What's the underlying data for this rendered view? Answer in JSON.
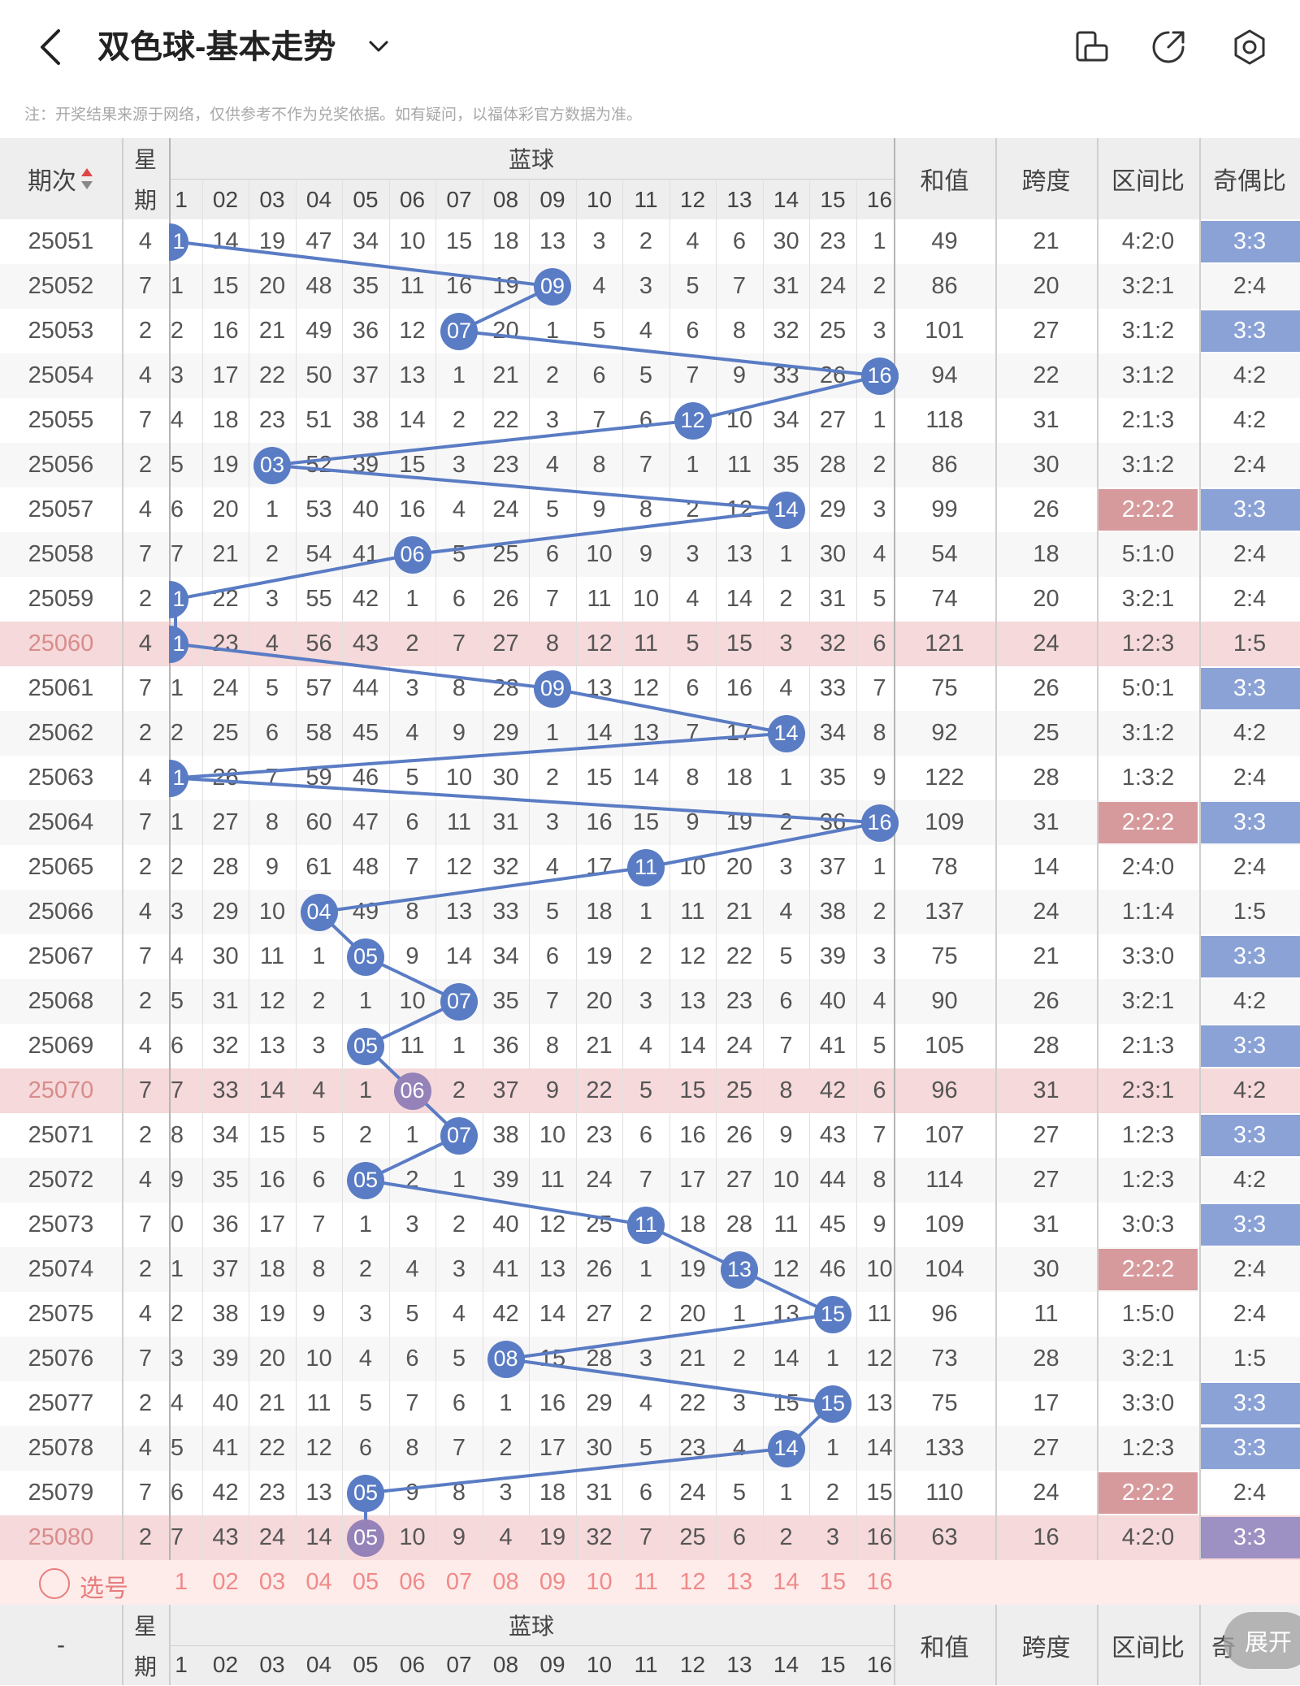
{
  "header": {
    "title": "双色球-基本走势",
    "icons": [
      "back-arrow-icon",
      "chevron-down-icon",
      "phone-rotate-icon",
      "share-icon",
      "settings-icon"
    ]
  },
  "note": "注：开奖结果来源于网络，仅供参考不作为兑奖依据。如有疑问，以福体彩官方数据为准。",
  "columns": {
    "period": "期次",
    "weekday": "星期",
    "blue_ball": "蓝球",
    "blue_numbers": [
      "01",
      "02",
      "03",
      "04",
      "05",
      "06",
      "07",
      "08",
      "09",
      "10",
      "11",
      "12",
      "13",
      "14",
      "15",
      "16"
    ],
    "sum": "和值",
    "span": "跨度",
    "zone_ratio": "区间比",
    "odd_even": "奇偶比"
  },
  "visible_first_col_digits": [
    "1",
    "02",
    "03",
    "04",
    "05",
    "06",
    "07",
    "08",
    "09",
    "10",
    "11",
    "12",
    "13",
    "14",
    "15",
    "16"
  ],
  "rows": [
    {
      "period": "25051",
      "week": "4",
      "blue": 1,
      "omit": [
        "1",
        "14",
        "19",
        "47",
        "34",
        "10",
        "15",
        "18",
        "13",
        "3",
        "2",
        "4",
        "6",
        "30",
        "23",
        "1"
      ],
      "sum": "49",
      "span": "21",
      "zone": "4:2:0",
      "oe": "3:3"
    },
    {
      "period": "25052",
      "week": "7",
      "blue": 9,
      "omit": [
        "1",
        "15",
        "20",
        "48",
        "35",
        "11",
        "16",
        "19",
        "09",
        "4",
        "3",
        "5",
        "7",
        "31",
        "24",
        "2"
      ],
      "sum": "86",
      "span": "20",
      "zone": "3:2:1",
      "oe": "2:4"
    },
    {
      "period": "25053",
      "week": "2",
      "blue": 7,
      "omit": [
        "2",
        "16",
        "21",
        "49",
        "36",
        "12",
        "07",
        "20",
        "1",
        "5",
        "4",
        "6",
        "8",
        "32",
        "25",
        "3"
      ],
      "sum": "101",
      "span": "27",
      "zone": "3:1:2",
      "oe": "3:3"
    },
    {
      "period": "25054",
      "week": "4",
      "blue": 16,
      "omit": [
        "3",
        "17",
        "22",
        "50",
        "37",
        "13",
        "1",
        "21",
        "2",
        "6",
        "5",
        "7",
        "9",
        "33",
        "26",
        "16"
      ],
      "sum": "94",
      "span": "22",
      "zone": "3:1:2",
      "oe": "4:2"
    },
    {
      "period": "25055",
      "week": "7",
      "blue": 12,
      "omit": [
        "4",
        "18",
        "23",
        "51",
        "38",
        "14",
        "2",
        "22",
        "3",
        "7",
        "6",
        "12",
        "10",
        "34",
        "27",
        "1"
      ],
      "sum": "118",
      "span": "31",
      "zone": "2:1:3",
      "oe": "4:2"
    },
    {
      "period": "25056",
      "week": "2",
      "blue": 3,
      "omit": [
        "5",
        "19",
        "03",
        "52",
        "39",
        "15",
        "3",
        "23",
        "4",
        "8",
        "7",
        "1",
        "11",
        "35",
        "28",
        "2"
      ],
      "sum": "86",
      "span": "30",
      "zone": "3:1:2",
      "oe": "2:4"
    },
    {
      "period": "25057",
      "week": "4",
      "blue": 14,
      "omit": [
        "6",
        "20",
        "1",
        "53",
        "40",
        "16",
        "4",
        "24",
        "5",
        "9",
        "8",
        "2",
        "12",
        "14",
        "29",
        "3"
      ],
      "sum": "99",
      "span": "26",
      "zone": "2:2:2",
      "oe": "3:3"
    },
    {
      "period": "25058",
      "week": "7",
      "blue": 6,
      "omit": [
        "7",
        "21",
        "2",
        "54",
        "41",
        "06",
        "5",
        "25",
        "6",
        "10",
        "9",
        "3",
        "13",
        "1",
        "30",
        "4"
      ],
      "sum": "54",
      "span": "18",
      "zone": "5:1:0",
      "oe": "2:4"
    },
    {
      "period": "25059",
      "week": "2",
      "blue": 1,
      "omit": [
        "1",
        "22",
        "3",
        "55",
        "42",
        "1",
        "6",
        "26",
        "7",
        "11",
        "10",
        "4",
        "14",
        "2",
        "31",
        "5"
      ],
      "sum": "74",
      "span": "20",
      "zone": "3:2:1",
      "oe": "2:4"
    },
    {
      "period": "25060",
      "week": "4",
      "blue": 1,
      "omit": [
        "1",
        "23",
        "4",
        "56",
        "43",
        "2",
        "7",
        "27",
        "8",
        "12",
        "11",
        "5",
        "15",
        "3",
        "32",
        "6"
      ],
      "sum": "121",
      "span": "24",
      "zone": "1:2:3",
      "oe": "1:5"
    },
    {
      "period": "25061",
      "week": "7",
      "blue": 9,
      "omit": [
        "1",
        "24",
        "5",
        "57",
        "44",
        "3",
        "8",
        "28",
        "09",
        "13",
        "12",
        "6",
        "16",
        "4",
        "33",
        "7"
      ],
      "sum": "75",
      "span": "26",
      "zone": "5:0:1",
      "oe": "3:3"
    },
    {
      "period": "25062",
      "week": "2",
      "blue": 14,
      "omit": [
        "2",
        "25",
        "6",
        "58",
        "45",
        "4",
        "9",
        "29",
        "1",
        "14",
        "13",
        "7",
        "17",
        "14",
        "34",
        "8"
      ],
      "sum": "92",
      "span": "25",
      "zone": "3:1:2",
      "oe": "4:2"
    },
    {
      "period": "25063",
      "week": "4",
      "blue": 1,
      "omit": [
        "1",
        "26",
        "7",
        "59",
        "46",
        "5",
        "10",
        "30",
        "2",
        "15",
        "14",
        "8",
        "18",
        "1",
        "35",
        "9"
      ],
      "sum": "122",
      "span": "28",
      "zone": "1:3:2",
      "oe": "2:4"
    },
    {
      "period": "25064",
      "week": "7",
      "blue": 16,
      "omit": [
        "1",
        "27",
        "8",
        "60",
        "47",
        "6",
        "11",
        "31",
        "3",
        "16",
        "15",
        "9",
        "19",
        "2",
        "36",
        "16"
      ],
      "sum": "109",
      "span": "31",
      "zone": "2:2:2",
      "oe": "3:3"
    },
    {
      "period": "25065",
      "week": "2",
      "blue": 11,
      "omit": [
        "2",
        "28",
        "9",
        "61",
        "48",
        "7",
        "12",
        "32",
        "4",
        "17",
        "11",
        "10",
        "20",
        "3",
        "37",
        "1"
      ],
      "sum": "78",
      "span": "14",
      "zone": "2:4:0",
      "oe": "2:4"
    },
    {
      "period": "25066",
      "week": "4",
      "blue": 4,
      "omit": [
        "3",
        "29",
        "10",
        "04",
        "49",
        "8",
        "13",
        "33",
        "5",
        "18",
        "1",
        "11",
        "21",
        "4",
        "38",
        "2"
      ],
      "sum": "137",
      "span": "24",
      "zone": "1:1:4",
      "oe": "1:5"
    },
    {
      "period": "25067",
      "week": "7",
      "blue": 5,
      "omit": [
        "4",
        "30",
        "11",
        "1",
        "05",
        "9",
        "14",
        "34",
        "6",
        "19",
        "2",
        "12",
        "22",
        "5",
        "39",
        "3"
      ],
      "sum": "75",
      "span": "21",
      "zone": "3:3:0",
      "oe": "3:3"
    },
    {
      "period": "25068",
      "week": "2",
      "blue": 7,
      "omit": [
        "5",
        "31",
        "12",
        "2",
        "1",
        "10",
        "07",
        "35",
        "7",
        "20",
        "3",
        "13",
        "23",
        "6",
        "40",
        "4"
      ],
      "sum": "90",
      "span": "26",
      "zone": "3:2:1",
      "oe": "4:2"
    },
    {
      "period": "25069",
      "week": "4",
      "blue": 5,
      "omit": [
        "6",
        "32",
        "13",
        "3",
        "05",
        "11",
        "1",
        "36",
        "8",
        "21",
        "4",
        "14",
        "24",
        "7",
        "41",
        "5"
      ],
      "sum": "105",
      "span": "28",
      "zone": "2:1:3",
      "oe": "3:3"
    },
    {
      "period": "25070",
      "week": "7",
      "blue": 6,
      "omit": [
        "7",
        "33",
        "14",
        "4",
        "1",
        "06",
        "2",
        "37",
        "9",
        "22",
        "5",
        "15",
        "25",
        "8",
        "42",
        "6"
      ],
      "sum": "96",
      "span": "31",
      "zone": "2:3:1",
      "oe": "4:2"
    },
    {
      "period": "25071",
      "week": "2",
      "blue": 7,
      "omit": [
        "8",
        "34",
        "15",
        "5",
        "2",
        "1",
        "07",
        "38",
        "10",
        "23",
        "6",
        "16",
        "26",
        "9",
        "43",
        "7"
      ],
      "sum": "107",
      "span": "27",
      "zone": "1:2:3",
      "oe": "3:3"
    },
    {
      "period": "25072",
      "week": "4",
      "blue": 5,
      "omit": [
        "9",
        "35",
        "16",
        "6",
        "05",
        "2",
        "1",
        "39",
        "11",
        "24",
        "7",
        "17",
        "27",
        "10",
        "44",
        "8"
      ],
      "sum": "114",
      "span": "27",
      "zone": "1:2:3",
      "oe": "4:2"
    },
    {
      "period": "25073",
      "week": "7",
      "blue": 11,
      "omit": [
        "0",
        "36",
        "17",
        "7",
        "1",
        "3",
        "2",
        "40",
        "12",
        "25",
        "11",
        "18",
        "28",
        "11",
        "45",
        "9"
      ],
      "sum": "109",
      "span": "31",
      "zone": "3:0:3",
      "oe": "3:3"
    },
    {
      "period": "25074",
      "week": "2",
      "blue": 13,
      "omit": [
        "1",
        "37",
        "18",
        "8",
        "2",
        "4",
        "3",
        "41",
        "13",
        "26",
        "1",
        "19",
        "13",
        "12",
        "46",
        "10"
      ],
      "sum": "104",
      "span": "30",
      "zone": "2:2:2",
      "oe": "2:4"
    },
    {
      "period": "25075",
      "week": "4",
      "blue": 15,
      "omit": [
        "2",
        "38",
        "19",
        "9",
        "3",
        "5",
        "4",
        "42",
        "14",
        "27",
        "2",
        "20",
        "1",
        "13",
        "15",
        "11"
      ],
      "sum": "96",
      "span": "11",
      "zone": "1:5:0",
      "oe": "2:4"
    },
    {
      "period": "25076",
      "week": "7",
      "blue": 8,
      "omit": [
        "3",
        "39",
        "20",
        "10",
        "4",
        "6",
        "5",
        "08",
        "15",
        "28",
        "3",
        "21",
        "2",
        "14",
        "1",
        "12"
      ],
      "sum": "73",
      "span": "28",
      "zone": "3:2:1",
      "oe": "1:5"
    },
    {
      "period": "25077",
      "week": "2",
      "blue": 15,
      "omit": [
        "4",
        "40",
        "21",
        "11",
        "5",
        "7",
        "6",
        "1",
        "16",
        "29",
        "4",
        "22",
        "3",
        "15",
        "15",
        "13"
      ],
      "sum": "75",
      "span": "17",
      "zone": "3:3:0",
      "oe": "3:3"
    },
    {
      "period": "25078",
      "week": "4",
      "blue": 14,
      "omit": [
        "5",
        "41",
        "22",
        "12",
        "6",
        "8",
        "7",
        "2",
        "17",
        "30",
        "5",
        "23",
        "4",
        "14",
        "1",
        "14"
      ],
      "sum": "133",
      "span": "27",
      "zone": "1:2:3",
      "oe": "3:3"
    },
    {
      "period": "25079",
      "week": "7",
      "blue": 5,
      "omit": [
        "6",
        "42",
        "23",
        "13",
        "05",
        "9",
        "8",
        "3",
        "18",
        "31",
        "6",
        "24",
        "5",
        "1",
        "2",
        "15"
      ],
      "sum": "110",
      "span": "24",
      "zone": "2:2:2",
      "oe": "2:4"
    },
    {
      "period": "25080",
      "week": "2",
      "blue": 5,
      "omit": [
        "7",
        "43",
        "24",
        "14",
        "05",
        "10",
        "9",
        "4",
        "19",
        "32",
        "7",
        "25",
        "6",
        "2",
        "3",
        "16"
      ],
      "sum": "63",
      "span": "16",
      "zone": "4:2:0",
      "oe": "3:3"
    }
  ],
  "pick_row": {
    "label": "选号"
  },
  "footer_header": {
    "period": "-",
    "weekday": "星期",
    "blue_ball": "蓝球",
    "sum": "和值",
    "span": "跨度",
    "zone_ratio": "区间比",
    "odd_even_partial": "奇"
  },
  "expand_button": "展开",
  "colors": {
    "ball": "#5a7cc4",
    "ball_group": "#9482b8",
    "line": "#5a7cc4",
    "row_highlight": "#f6d9da",
    "zone_highlight": "#d79a9c",
    "oe_highlight": "#8ba2d6",
    "oe_group": "#9d90c2",
    "pick_bg": "#fdecea",
    "pick_text": "#f08a8a"
  }
}
